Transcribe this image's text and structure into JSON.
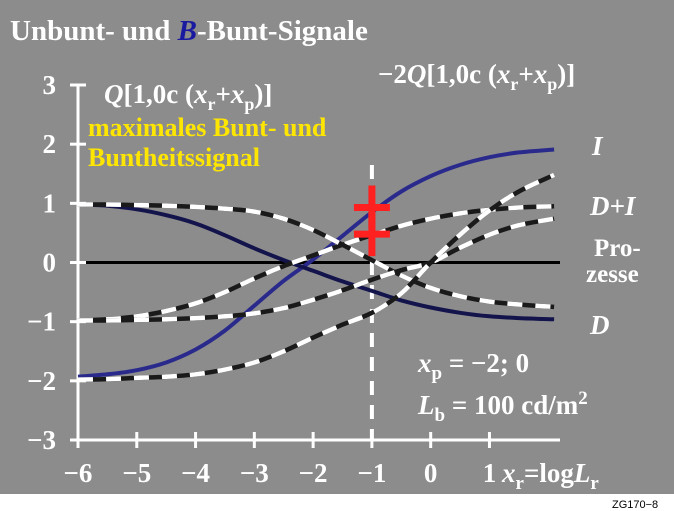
{
  "chart_data": {
    "type": "line",
    "title_parts": {
      "pre": "Unbunt- und ",
      "accent": "B",
      "post": "-Bunt-Signale"
    },
    "label_left": {
      "Q": "Q",
      "bracket": "[1,0c (",
      "xr": "x",
      "xr_sub": "r",
      "plus": "+",
      "xp": "x",
      "xp_sub": "p",
      "close": ")]"
    },
    "label_right": {
      "prefix": "−2",
      "Q": "Q",
      "bracket": "[1,0c (",
      "xr": "x",
      "xr_sub": "r",
      "plus": "+",
      "xp": "x",
      "xp_sub": "p",
      "close": ")]"
    },
    "annotation_line1": "maximales Bunt- und",
    "annotation_line2": "Buntheitssignal",
    "right_labels": {
      "I": "I",
      "DI": "D+I",
      "pro1": "Pro-",
      "pro2": "zesse",
      "D": "D"
    },
    "xp_text": {
      "x": "x",
      "sub": "p",
      "rest": " = −2; 0"
    },
    "lb_text": {
      "L": "L",
      "sub": "b",
      "rest": " = 100 cd/m",
      "sup": "2"
    },
    "xaxis_label": {
      "x": "x",
      "sub": "r",
      "eq": "=log",
      "L": "L",
      "Lsub": "r"
    },
    "footer": "ZG170−8",
    "xlim": [
      -6,
      2.2
    ],
    "ylim": [
      -3,
      3
    ],
    "x_ticks": [
      -6,
      -5,
      -4,
      -3,
      -2,
      -1,
      0,
      1
    ],
    "x_tick_labels": [
      "−6",
      "−5",
      "−4",
      "−3",
      "−2",
      "−1",
      "0",
      "1"
    ],
    "y_ticks": [
      3,
      2,
      1,
      0,
      -1,
      -2,
      -3
    ],
    "y_tick_labels": [
      "3",
      "2",
      "1",
      "0",
      "−1",
      "−2",
      "−3"
    ],
    "marker_x": -1,
    "marker_y": [
      0.93,
      0.48
    ],
    "colors": {
      "background": "#8c8c8c",
      "text": "#ffffff",
      "accent": "#1a1aa0",
      "annotation": "#ffe600",
      "curve_I": "#2a2a8c",
      "curve_D": "#14144d",
      "dashed_dark": "#1a1a1a",
      "dashed_light": "#ffffff",
      "marker": "#ff2020"
    },
    "series": [
      {
        "name": "I",
        "style": "solid",
        "color_key": "curve_I",
        "x": [
          -6,
          -5.5,
          -5,
          -4.5,
          -4,
          -3.5,
          -3,
          -2.5,
          -2,
          -1.5,
          -1,
          -0.5,
          0,
          0.5,
          1,
          1.5,
          2.1
        ],
        "y": [
          -1.93,
          -1.89,
          -1.82,
          -1.69,
          -1.47,
          -1.15,
          -0.73,
          -0.31,
          0.05,
          0.45,
          0.85,
          1.2,
          1.46,
          1.65,
          1.78,
          1.86,
          1.91
        ]
      },
      {
        "name": "D",
        "style": "solid",
        "color_key": "curve_D",
        "x": [
          -6,
          -5.5,
          -5,
          -4.5,
          -4,
          -3.5,
          -3,
          -2.5,
          -2,
          -1.5,
          -1,
          -0.5,
          0,
          0.5,
          1,
          1.5,
          2.1
        ],
        "y": [
          0.98,
          0.96,
          0.9,
          0.8,
          0.66,
          0.46,
          0.24,
          0.04,
          -0.14,
          -0.32,
          -0.48,
          -0.64,
          -0.76,
          -0.85,
          -0.91,
          -0.94,
          -0.96
        ]
      },
      {
        "name": "D+I",
        "style": "dashed",
        "x": [
          -6,
          -5.5,
          -5,
          -4.5,
          -4,
          -3.5,
          -3,
          -2.5,
          -2,
          -1.5,
          -1,
          -0.5,
          0,
          0.5,
          1,
          1.5,
          2.1
        ],
        "y": [
          -0.98,
          -0.96,
          -0.91,
          -0.82,
          -0.69,
          -0.5,
          -0.27,
          -0.06,
          0.12,
          0.3,
          0.46,
          0.62,
          0.74,
          0.83,
          0.89,
          0.93,
          0.95
        ]
      },
      {
        "name": "",
        "style": "dashed",
        "x": [
          -6,
          -5.5,
          -5,
          -4.5,
          -4,
          -3.5,
          -3,
          -2.5,
          -2,
          -1.5,
          -1,
          -0.5,
          0,
          0.5,
          1,
          1.5,
          2.1
        ],
        "y": [
          0.98,
          0.98,
          0.97,
          0.96,
          0.94,
          0.91,
          0.86,
          0.74,
          0.55,
          0.3,
          0.04,
          -0.22,
          -0.43,
          -0.57,
          -0.66,
          -0.71,
          -0.75
        ]
      },
      {
        "name": "",
        "style": "dashed",
        "x": [
          -6,
          -5.5,
          -5,
          -4.5,
          -4,
          -3.5,
          -3,
          -2.5,
          -2,
          -1.5,
          -1,
          -0.5,
          0,
          0.5,
          1,
          1.5,
          2.1
        ],
        "y": [
          -0.98,
          -0.98,
          -0.97,
          -0.96,
          -0.94,
          -0.91,
          -0.86,
          -0.77,
          -0.63,
          -0.47,
          -0.29,
          -0.13,
          0.0,
          0.25,
          0.47,
          0.63,
          0.74
        ]
      },
      {
        "name": "",
        "style": "dashed",
        "x": [
          -6,
          -5.5,
          -5,
          -4.5,
          -4,
          -3.5,
          -3,
          -2.5,
          -2,
          -1.5,
          -1,
          -0.5,
          0,
          0.5,
          1,
          1.5,
          2.1
        ],
        "y": [
          -1.98,
          -1.97,
          -1.95,
          -1.93,
          -1.89,
          -1.81,
          -1.69,
          -1.5,
          -1.27,
          -1.05,
          -0.85,
          -0.52,
          0.0,
          0.47,
          0.88,
          1.2,
          1.48
        ]
      }
    ]
  }
}
